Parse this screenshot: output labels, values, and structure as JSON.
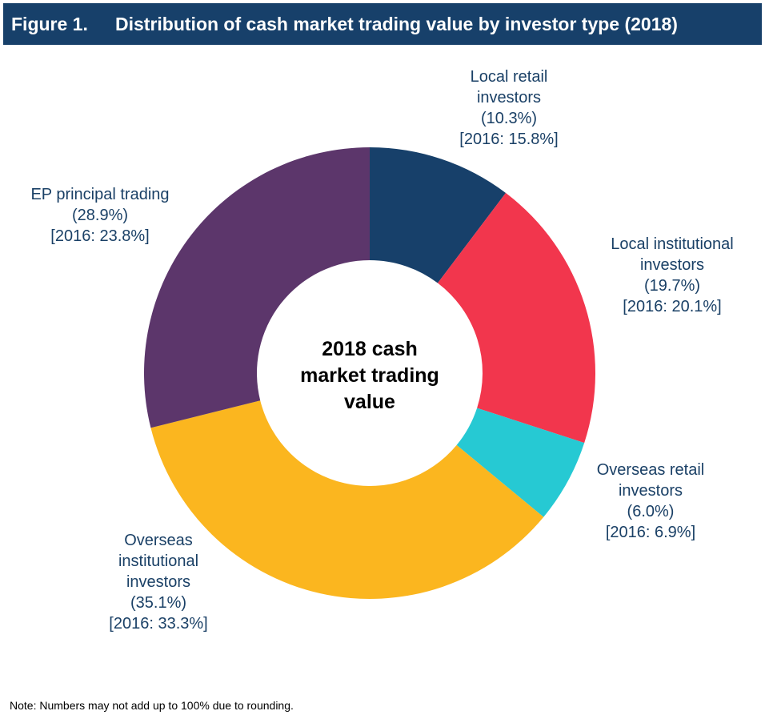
{
  "figure_label": "Figure 1.",
  "chart_data": {
    "type": "donut",
    "title": "Distribution of cash market trading value by investor type (2018)",
    "center_label": "2018 cash market trading value",
    "categories": [
      "Local retail investors",
      "Local institutional investors",
      "Overseas retail investors",
      "Overseas institutional investors",
      "EP principal trading"
    ],
    "values": [
      10.3,
      19.7,
      6.0,
      35.1,
      28.9
    ],
    "value_labels": [
      "(10.3%)",
      "(19.7%)",
      "(6.0%)",
      "(35.1%)",
      "(28.9%)"
    ],
    "comparison_labels": [
      "[2016: 15.8%]",
      "[2016: 20.1%]",
      "[2016: 6.9%]",
      "[2016: 33.3%]",
      "[2016: 23.8%]"
    ],
    "colors": [
      "#17406a",
      "#f2364d",
      "#26c9d3",
      "#fbb61f",
      "#5c366b"
    ]
  },
  "note": "Note: Numbers may not add up to 100% due to rounding."
}
